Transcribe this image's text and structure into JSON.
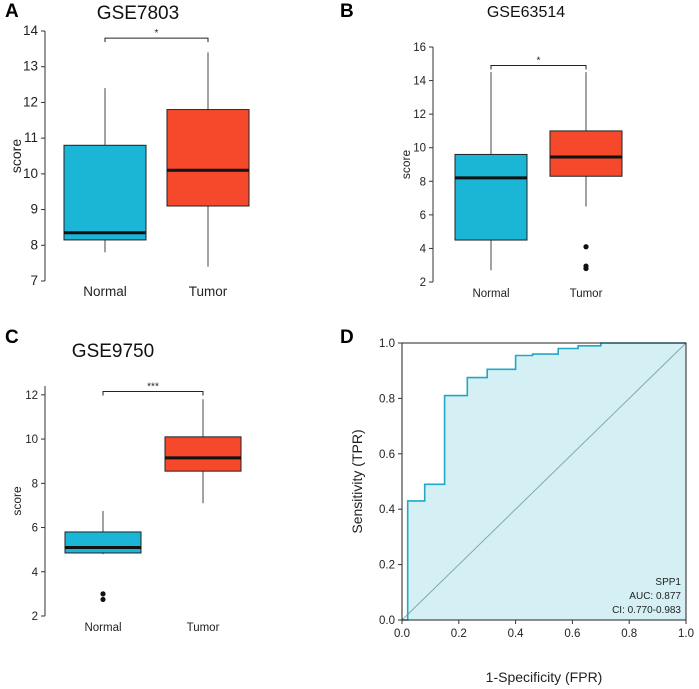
{
  "panels": [
    {
      "letter": "A",
      "title": "GSE7803"
    },
    {
      "letter": "B",
      "title": "GSE63514"
    },
    {
      "letter": "C",
      "title": "GSE9750"
    },
    {
      "letter": "D",
      "title": ""
    }
  ],
  "colors": {
    "normal": "#1bb5d6",
    "tumor": "#f6492c",
    "roc_fill": "#d4f0f4",
    "roc_line": "#22a7c4",
    "diag": "#8aa6ad"
  },
  "chart_data": [
    {
      "type": "box",
      "panel": "A",
      "title": "GSE7803",
      "ylabel": "score",
      "xlabel": "",
      "ylim": [
        7,
        14
      ],
      "yticks": [
        7,
        8,
        9,
        10,
        11,
        12,
        13,
        14
      ],
      "categories": [
        "Normal",
        "Tumor"
      ],
      "boxes": [
        {
          "name": "Normal",
          "whisker_low": 7.8,
          "q1": 8.15,
          "median": 8.35,
          "q3": 10.8,
          "whisker_high": 12.4,
          "outliers": []
        },
        {
          "name": "Tumor",
          "whisker_low": 7.4,
          "q1": 9.1,
          "median": 10.1,
          "q3": 11.8,
          "whisker_high": 13.4,
          "outliers": []
        }
      ],
      "significance": "*",
      "sig_level": 13.8
    },
    {
      "type": "box",
      "panel": "B",
      "title": "GSE63514",
      "ylabel": "score",
      "xlabel": "",
      "ylim": [
        2,
        16
      ],
      "yticks": [
        2,
        4,
        6,
        8,
        10,
        12,
        14,
        16
      ],
      "categories": [
        "Normal",
        "Tumor"
      ],
      "boxes": [
        {
          "name": "Normal",
          "whisker_low": 2.7,
          "q1": 4.5,
          "median": 8.2,
          "q3": 9.6,
          "whisker_high": 14.5,
          "outliers": []
        },
        {
          "name": "Tumor",
          "whisker_low": 6.5,
          "q1": 8.3,
          "median": 9.45,
          "q3": 11.0,
          "whisker_high": 14.5,
          "outliers": [
            4.1,
            2.95,
            2.8
          ]
        }
      ],
      "significance": "*",
      "sig_level": 14.9
    },
    {
      "type": "box",
      "panel": "C",
      "title": "GSE9750",
      "ylabel": "score",
      "xlabel": "",
      "ylim": [
        2,
        12.4
      ],
      "yticks": [
        2,
        4,
        6,
        8,
        10,
        12
      ],
      "categories": [
        "Normal",
        "Tumor"
      ],
      "boxes": [
        {
          "name": "Normal",
          "whisker_low": 4.8,
          "q1": 4.85,
          "median": 5.1,
          "q3": 5.8,
          "whisker_high": 6.75,
          "outliers": [
            3.0,
            2.75
          ]
        },
        {
          "name": "Tumor",
          "whisker_low": 7.1,
          "q1": 8.55,
          "median": 9.15,
          "q3": 10.1,
          "whisker_high": 11.8,
          "outliers": []
        }
      ],
      "significance": "***",
      "sig_level": 12.15
    },
    {
      "type": "roc",
      "panel": "D",
      "title": "",
      "xlabel": "1-Specificity (FPR)",
      "ylabel": "Sensitivity (TPR)",
      "xlim": [
        0,
        1
      ],
      "ylim": [
        0,
        1
      ],
      "xticks": [
        "0.0",
        "0.2",
        "0.4",
        "0.6",
        "0.8",
        "1.0"
      ],
      "yticks": [
        "0.0",
        "0.2",
        "0.4",
        "0.6",
        "0.8",
        "1.0"
      ],
      "x": [
        0,
        0,
        0.02,
        0.02,
        0.08,
        0.08,
        0.15,
        0.15,
        0.23,
        0.23,
        0.3,
        0.3,
        0.35,
        0.35,
        0.4,
        0.4,
        0.46,
        0.46,
        0.55,
        0.55,
        0.62,
        0.62,
        0.7,
        0.7,
        1.0
      ],
      "y": [
        0,
        0,
        0,
        0.43,
        0.43,
        0.49,
        0.49,
        0.81,
        0.81,
        0.875,
        0.875,
        0.905,
        0.905,
        0.905,
        0.905,
        0.955,
        0.955,
        0.96,
        0.96,
        0.98,
        0.98,
        0.99,
        0.99,
        1.0,
        1.0
      ],
      "legend": {
        "name": "SPP1",
        "auc": "AUC: 0.877",
        "ci": "CI: 0.770-0.983"
      }
    }
  ]
}
